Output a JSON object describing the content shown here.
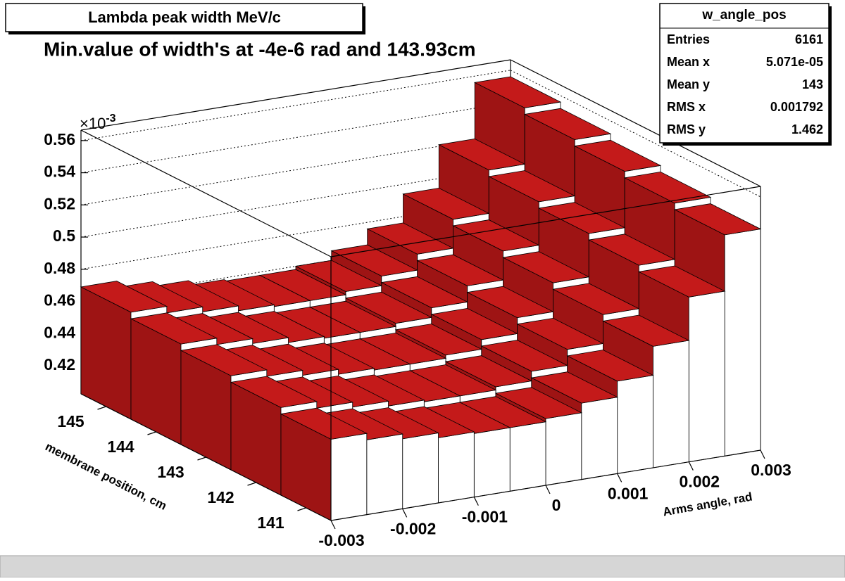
{
  "chart_data": {
    "type": "lego",
    "title": "Lambda peak width MeV/c",
    "subtitle": "Min.value of width's at -4e-6 rad and 143.93cm",
    "x_label": "Arms angle, rad",
    "y_label": "membrane position, cm",
    "z_multiplier": "×10",
    "z_multiplier_exponent": "-3",
    "xlim": [
      -0.003,
      0.003
    ],
    "ylim": [
      140.5,
      145.5
    ],
    "zlim": [
      0.4025,
      0.5665
    ],
    "xticks": [
      -0.003,
      -0.002,
      -0.001,
      0,
      0.001,
      0.002,
      0.003
    ],
    "yticks": [
      141,
      142,
      143,
      144,
      145
    ],
    "zticks": [
      0.42,
      0.44,
      0.46,
      0.48,
      0.5,
      0.52,
      0.54,
      0.56
    ],
    "grid": true,
    "top_color": "#c41a1a",
    "side_color": "#9e1414",
    "front_color": "#ffffff",
    "xbins": [
      -0.003,
      -0.0025,
      -0.002,
      -0.0015,
      -0.001,
      -0.0005,
      0,
      0.0005,
      0.001,
      0.0015,
      0.002,
      0.0025,
      0.003
    ],
    "ybins": [
      140.5,
      141.5,
      142.5,
      143.5,
      144.5,
      145.5
    ],
    "values": [
      [
        0.453,
        0.449,
        0.446,
        0.443,
        0.442,
        0.442,
        0.444,
        0.45,
        0.46,
        0.478,
        0.505,
        0.54
      ],
      [
        0.457,
        0.453,
        0.45,
        0.447,
        0.446,
        0.446,
        0.448,
        0.454,
        0.464,
        0.482,
        0.509,
        0.544
      ],
      [
        0.461,
        0.457,
        0.454,
        0.451,
        0.45,
        0.45,
        0.452,
        0.458,
        0.468,
        0.486,
        0.513,
        0.548
      ],
      [
        0.465,
        0.461,
        0.458,
        0.455,
        0.454,
        0.454,
        0.456,
        0.462,
        0.472,
        0.49,
        0.517,
        0.552
      ],
      [
        0.469,
        0.465,
        0.462,
        0.459,
        0.458,
        0.458,
        0.46,
        0.466,
        0.476,
        0.494,
        0.521,
        0.556
      ]
    ],
    "stats": {
      "name": "w_angle_pos",
      "rows": [
        [
          "Entries",
          6161
        ],
        [
          "Mean x",
          "5.071e-05"
        ],
        [
          "Mean y",
          143
        ],
        [
          "RMS x",
          0.001792
        ],
        [
          "RMS y",
          1.462
        ]
      ]
    }
  }
}
